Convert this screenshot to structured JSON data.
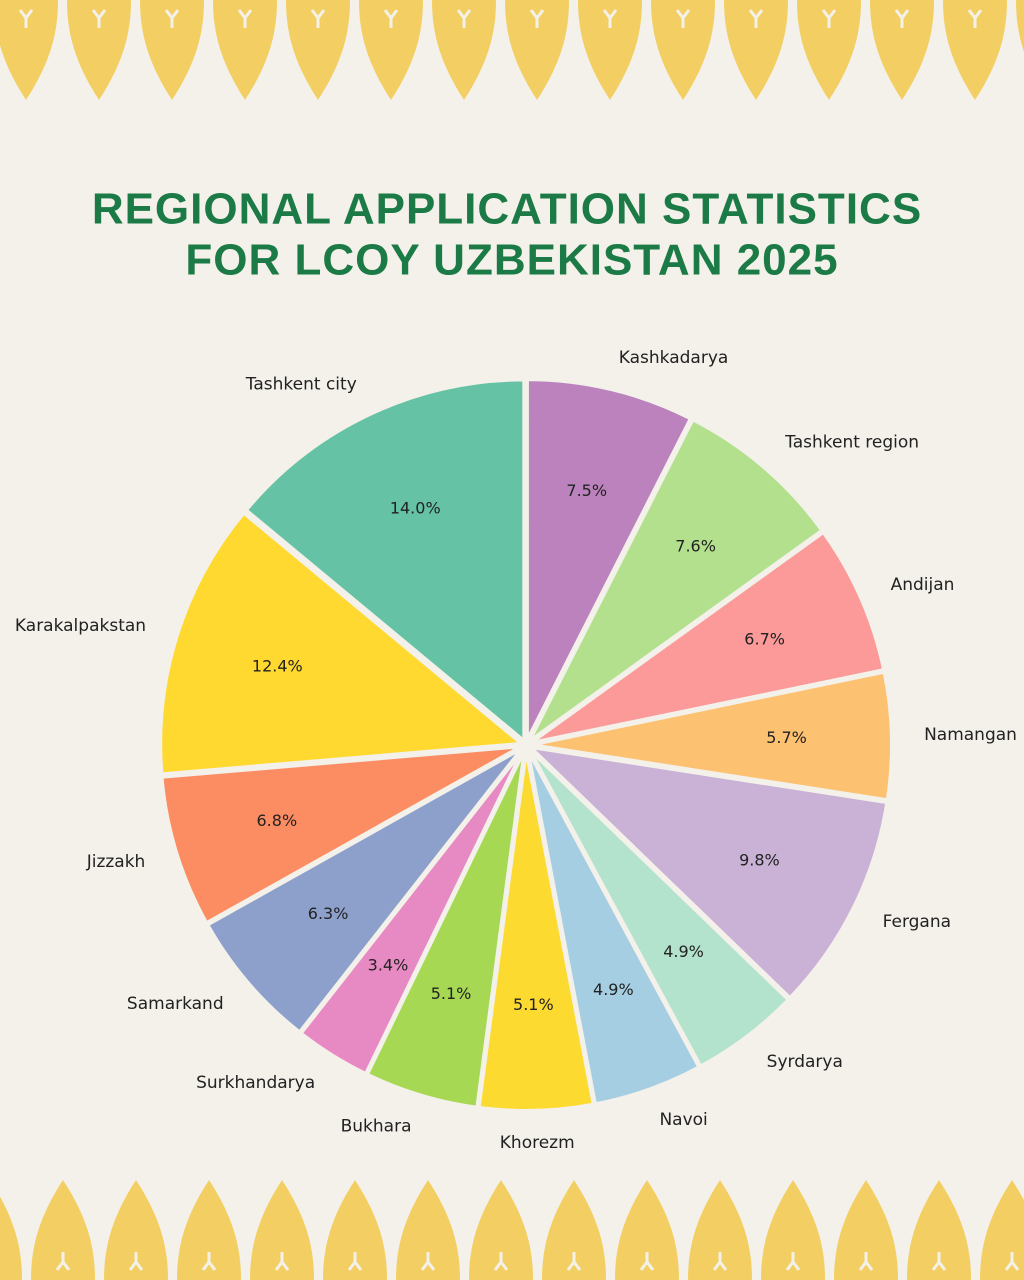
{
  "chart_data": {
    "type": "pie",
    "title": [
      "REGIONAL APPLICATION STATISTICS",
      "FOR LCOY UZBEKISTAN 2025"
    ],
    "categories": [
      "Kashkadarya",
      "Tashkent region",
      "Andijan",
      "Namangan",
      "Fergana",
      "Syrdarya",
      "Navoi",
      "Khorezm",
      "Bukhara",
      "Surkhandarya",
      "Samarkand",
      "Jizzakh",
      "Karakalpakstan",
      "Tashkent city"
    ],
    "values": [
      7.5,
      7.6,
      6.7,
      5.7,
      9.8,
      4.9,
      4.9,
      5.1,
      5.1,
      3.4,
      6.3,
      6.8,
      12.4,
      14.0
    ],
    "value_labels": [
      "7.5%",
      "7.6%",
      "6.7%",
      "5.7%",
      "9.8%",
      "4.9%",
      "4.9%",
      "5.1%",
      "5.1%",
      "3.4%",
      "6.3%",
      "6.8%",
      "12.4%",
      "14.0%"
    ],
    "colors": [
      "#bc82bd",
      "#b3e08c",
      "#fb9a99",
      "#fdc172",
      "#cab2d6",
      "#b3e2cd",
      "#a6cee3",
      "#fdda30",
      "#a6d854",
      "#e78ac3",
      "#8da0cb",
      "#fc8d62",
      "#ffd92f",
      "#66c2a5"
    ]
  }
}
